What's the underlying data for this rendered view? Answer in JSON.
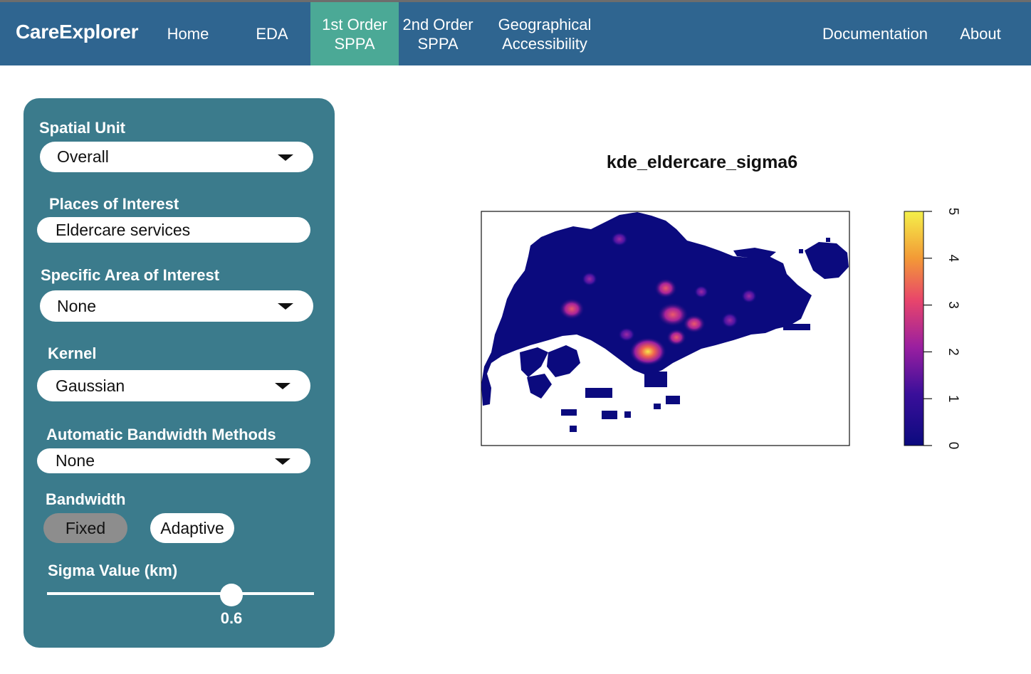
{
  "navbar": {
    "brand": "CareExplorer",
    "items": [
      {
        "label": "Home"
      },
      {
        "label": "EDA"
      },
      {
        "label": "1st Order\nSPPA",
        "active": true
      },
      {
        "label": "2nd Order\nSPPA"
      },
      {
        "label": "Geographical\nAccessibility"
      },
      {
        "label": "Documentation"
      },
      {
        "label": "About"
      }
    ],
    "colors": {
      "bar": "#2f6590",
      "active": "#4ba996"
    }
  },
  "sidebar": {
    "spatial_unit": {
      "label": "Spatial Unit",
      "value": "Overall"
    },
    "places_of_interest": {
      "label": "Places of Interest",
      "value": "Eldercare services"
    },
    "specific_area": {
      "label": "Specific Area of Interest",
      "value": "None"
    },
    "kernel": {
      "label": "Kernel",
      "value": "Gaussian"
    },
    "auto_bandwidth": {
      "label": "Automatic Bandwidth Methods",
      "value": "None"
    },
    "bandwidth": {
      "label": "Bandwidth",
      "options": [
        "Fixed",
        "Adaptive"
      ],
      "selected": "Fixed"
    },
    "sigma": {
      "label": "Sigma Value (km)",
      "value": "0.6"
    },
    "color": "#3b7b8c"
  },
  "plot": {
    "title": "kde_eldercare_sigma6",
    "legend_ticks": [
      "0",
      "1",
      "2",
      "3",
      "4",
      "5"
    ],
    "colors": {
      "low": "#0b0a7e",
      "high": "#f4f04a"
    }
  },
  "chart_data": {
    "type": "heatmap",
    "title": "kde_eldercare_sigma6",
    "colorbar": {
      "range": [
        0,
        5
      ],
      "ticks": [
        0,
        1,
        2,
        3,
        4,
        5
      ],
      "palette": [
        "#0b0a7e",
        "#7a12a8",
        "#e8456b",
        "#f39a36",
        "#f4f04a"
      ]
    }
  }
}
